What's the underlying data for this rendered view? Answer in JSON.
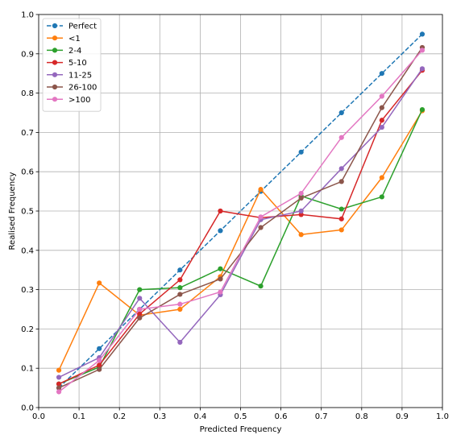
{
  "chart_data": {
    "type": "line",
    "title": "",
    "xlabel": "Predicted Frequency",
    "ylabel": "Realised Frequency",
    "xlim": [
      0.0,
      1.0
    ],
    "ylim": [
      0.0,
      1.0
    ],
    "xticks": [
      "0.0",
      "0.1",
      "0.2",
      "0.3",
      "0.4",
      "0.5",
      "0.6",
      "0.7",
      "0.8",
      "0.9",
      "1.0"
    ],
    "yticks": [
      "0.0",
      "0.1",
      "0.2",
      "0.3",
      "0.4",
      "0.5",
      "0.6",
      "0.7",
      "0.8",
      "0.9",
      "1.0"
    ],
    "grid": true,
    "legend_position": "top-left",
    "x": [
      0.05,
      0.15,
      0.25,
      0.35,
      0.45,
      0.55,
      0.65,
      0.75,
      0.85,
      0.95
    ],
    "series": [
      {
        "name": "Perfect",
        "color": "#1f77b4",
        "dashed": true,
        "values": [
          0.05,
          0.15,
          0.25,
          0.35,
          0.45,
          0.55,
          0.65,
          0.75,
          0.85,
          0.95
        ]
      },
      {
        "name": "<1",
        "color": "#ff7f0e",
        "dashed": false,
        "values": [
          0.095,
          0.317,
          0.235,
          0.25,
          0.333,
          0.555,
          0.44,
          0.452,
          0.585,
          0.755
        ]
      },
      {
        "name": "2-4",
        "color": "#2ca02c",
        "dashed": false,
        "values": [
          0.06,
          0.103,
          0.3,
          0.305,
          0.353,
          0.309,
          0.538,
          0.505,
          0.536,
          0.758
        ]
      },
      {
        "name": "5-10",
        "color": "#d62728",
        "dashed": false,
        "values": [
          0.06,
          0.108,
          0.238,
          0.325,
          0.5,
          0.483,
          0.491,
          0.48,
          0.731,
          0.858
        ]
      },
      {
        "name": "11-25",
        "color": "#9467bd",
        "dashed": false,
        "values": [
          0.077,
          0.127,
          0.278,
          0.166,
          0.287,
          0.478,
          0.5,
          0.608,
          0.713,
          0.862
        ]
      },
      {
        "name": "26-100",
        "color": "#8c564b",
        "dashed": false,
        "values": [
          0.05,
          0.097,
          0.228,
          0.288,
          0.327,
          0.458,
          0.533,
          0.575,
          0.763,
          0.916
        ]
      },
      {
        "name": ">100",
        "color": "#e377c2",
        "dashed": false,
        "values": [
          0.04,
          0.12,
          0.25,
          0.263,
          0.294,
          0.485,
          0.545,
          0.687,
          0.792,
          0.909
        ]
      }
    ]
  }
}
